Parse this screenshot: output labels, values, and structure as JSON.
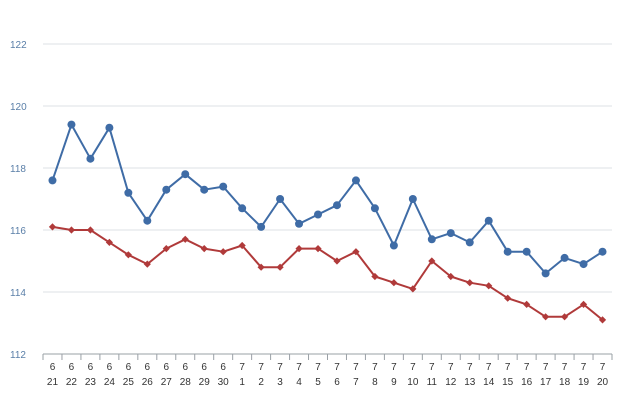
{
  "chart_data": {
    "type": "line",
    "title": "",
    "xlabel": "",
    "ylabel": "",
    "ylim": [
      112,
      122
    ],
    "yticks": [
      112,
      114,
      116,
      118,
      120,
      122
    ],
    "grid": true,
    "categories": [
      {
        "month": "6",
        "day": "21"
      },
      {
        "month": "6",
        "day": "22"
      },
      {
        "month": "6",
        "day": "23"
      },
      {
        "month": "6",
        "day": "24"
      },
      {
        "month": "6",
        "day": "25"
      },
      {
        "month": "6",
        "day": "26"
      },
      {
        "month": "6",
        "day": "27"
      },
      {
        "month": "6",
        "day": "28"
      },
      {
        "month": "6",
        "day": "29"
      },
      {
        "month": "6",
        "day": "30"
      },
      {
        "month": "7",
        "day": "1"
      },
      {
        "month": "7",
        "day": "2"
      },
      {
        "month": "7",
        "day": "3"
      },
      {
        "month": "7",
        "day": "4"
      },
      {
        "month": "7",
        "day": "5"
      },
      {
        "month": "7",
        "day": "6"
      },
      {
        "month": "7",
        "day": "7"
      },
      {
        "month": "7",
        "day": "8"
      },
      {
        "month": "7",
        "day": "9"
      },
      {
        "month": "7",
        "day": "10"
      },
      {
        "month": "7",
        "day": "11"
      },
      {
        "month": "7",
        "day": "12"
      },
      {
        "month": "7",
        "day": "13"
      },
      {
        "month": "7",
        "day": "14"
      },
      {
        "month": "7",
        "day": "15"
      },
      {
        "month": "7",
        "day": "16"
      },
      {
        "month": "7",
        "day": "17"
      },
      {
        "month": "7",
        "day": "18"
      },
      {
        "month": "7",
        "day": "19"
      },
      {
        "month": "7",
        "day": "20"
      }
    ],
    "series": [
      {
        "color": "#3f6ca6",
        "marker": "circle",
        "values": [
          117.6,
          119.4,
          118.3,
          119.3,
          117.2,
          116.3,
          117.3,
          117.8,
          117.3,
          117.4,
          116.7,
          116.1,
          117.0,
          116.2,
          116.5,
          116.8,
          117.6,
          116.7,
          115.5,
          117.0,
          115.7,
          115.9,
          115.6,
          116.3,
          115.3,
          115.3,
          114.6,
          115.1,
          114.9,
          115.3
        ]
      },
      {
        "color": "#b03a3a",
        "marker": "diamond",
        "values": [
          116.1,
          116.0,
          116.0,
          115.6,
          115.2,
          114.9,
          115.4,
          115.7,
          115.4,
          115.3,
          115.5,
          114.8,
          114.8,
          115.4,
          115.4,
          115.0,
          115.3,
          114.5,
          114.3,
          114.1,
          115.0,
          114.5,
          114.3,
          114.2,
          113.8,
          113.6,
          113.2,
          113.2,
          113.6,
          113.1
        ]
      }
    ]
  }
}
